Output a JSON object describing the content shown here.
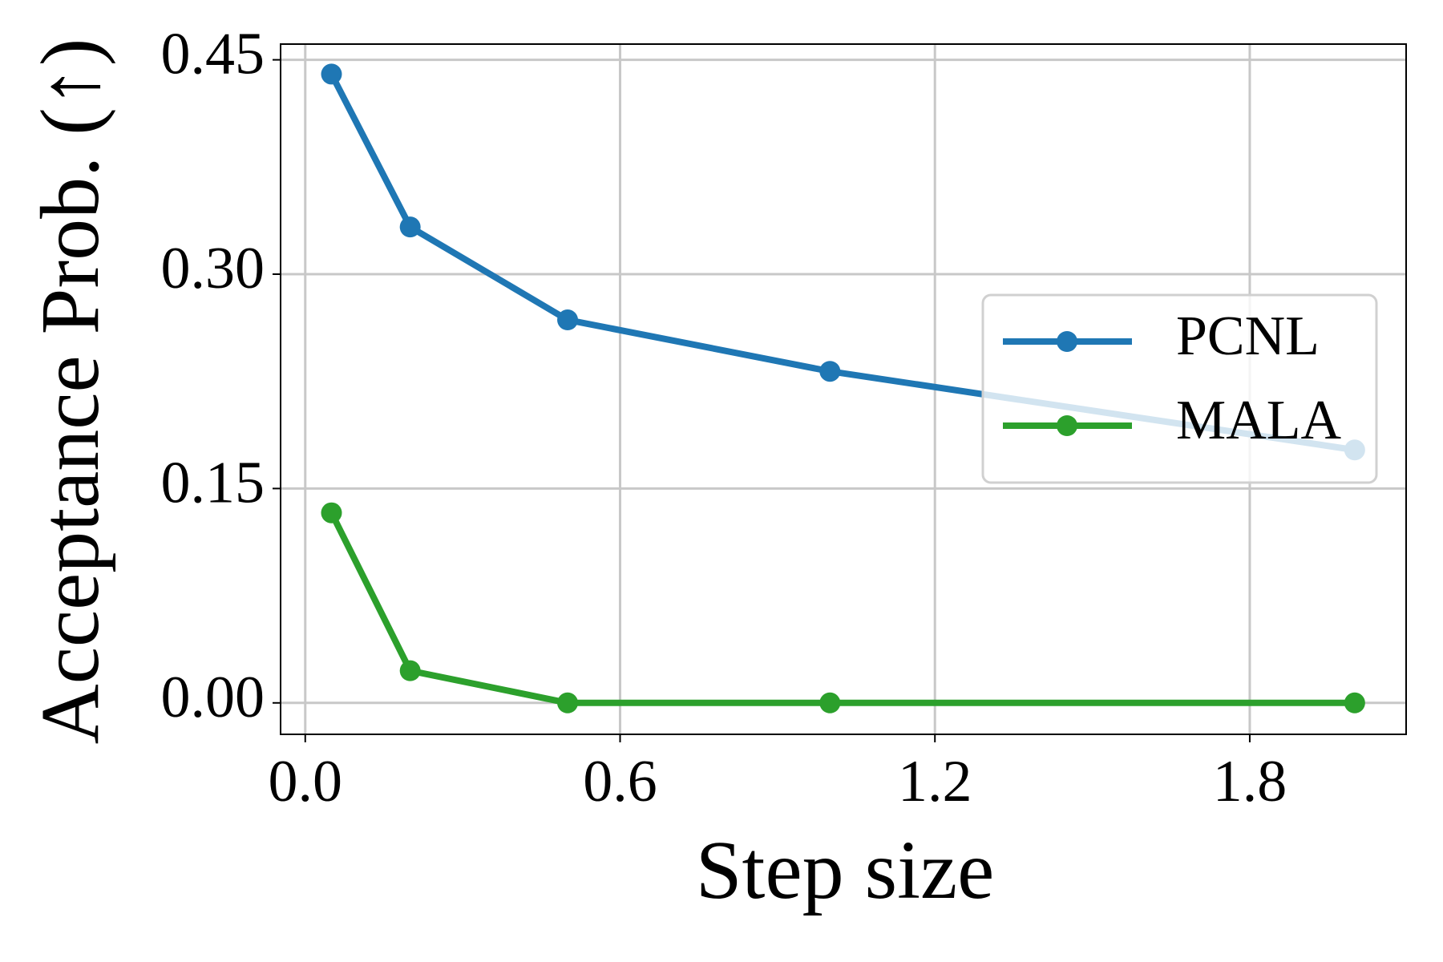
{
  "chart_data": {
    "type": "line",
    "x_label": "Step size",
    "y_label": "Acceptance Prob. (↑)",
    "x": [
      0.05,
      0.2,
      0.5,
      1.0,
      2.0
    ],
    "series": [
      {
        "name": "PCNL",
        "color": "#1f77b4",
        "values": [
          0.44,
          0.333,
          0.268,
          0.232,
          0.177
        ]
      },
      {
        "name": "MALA",
        "color": "#2ca02c",
        "values": [
          0.133,
          0.0225,
          0,
          0,
          0
        ]
      }
    ],
    "xlim": [
      -0.047,
      2.098
    ],
    "ylim": [
      -0.022,
      0.461
    ],
    "xticks": [
      {
        "value": 0,
        "label": "0.0"
      },
      0.6,
      1.2,
      1.8
    ],
    "yticks": [
      {
        "value": 0,
        "label": "0.00"
      },
      0.15,
      {
        "value": 0.3,
        "label": "0.30"
      },
      0.45
    ],
    "grid": true,
    "legend": "center right"
  }
}
